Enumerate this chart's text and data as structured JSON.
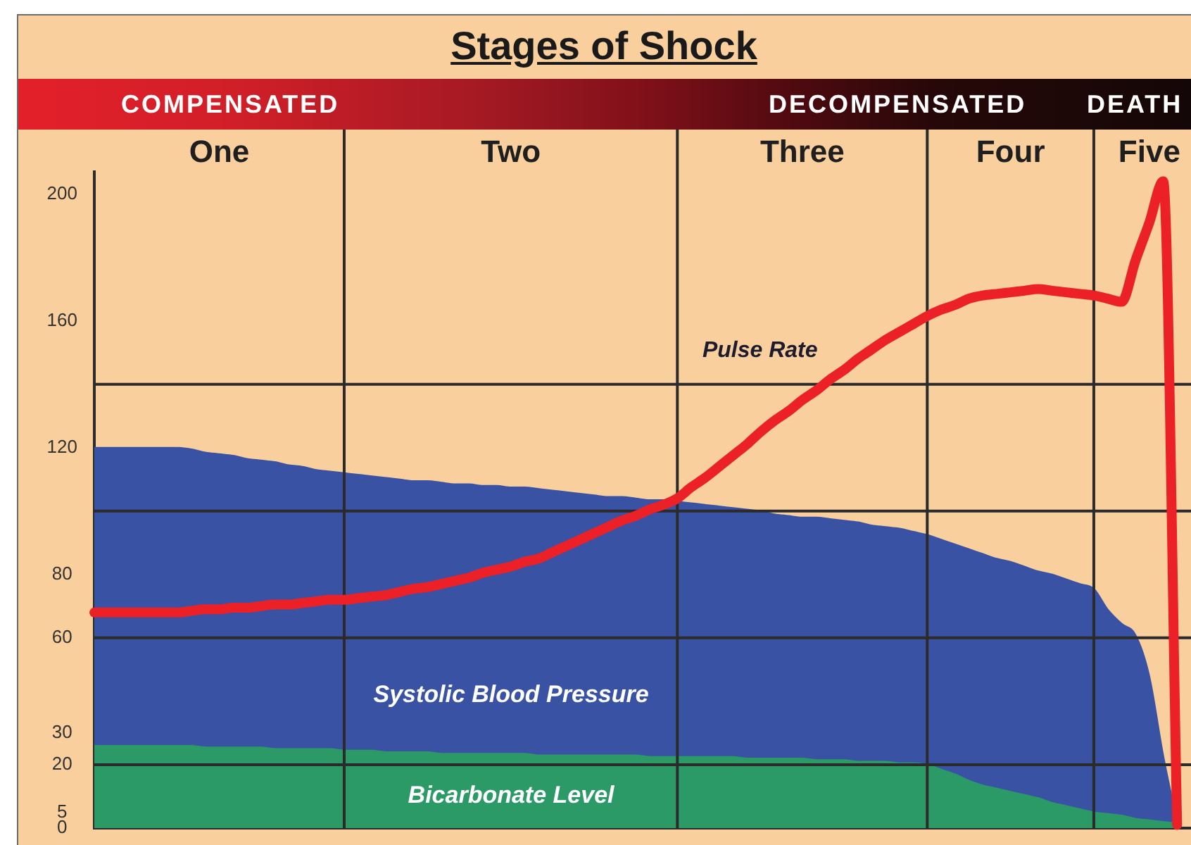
{
  "chart_data": {
    "type": "area",
    "title": "Stages of Shock",
    "annotations": [
      "COMPENSATED",
      "DECOMPENSATED",
      "DEATH"
    ],
    "categories": [
      null,
      null,
      null,
      null,
      null,
      null,
      null,
      null,
      null,
      "One",
      null,
      null,
      null,
      null,
      null,
      null,
      null,
      null,
      null,
      null,
      null,
      null,
      null,
      null,
      null,
      null,
      null,
      null,
      null,
      null,
      "Two",
      null,
      null,
      null,
      null,
      null,
      null,
      null,
      null,
      null,
      null,
      null,
      null,
      null,
      null,
      null,
      null,
      null,
      null,
      null,
      null,
      "Three",
      null,
      null,
      null,
      null,
      null,
      null,
      null,
      null,
      null,
      null,
      null,
      null,
      null,
      null,
      "Four",
      null,
      null,
      null,
      null,
      null,
      null,
      null,
      null,
      null,
      "Five",
      null,
      null,
      null
    ],
    "ylim": [
      0,
      207
    ],
    "yticks": [
      0,
      5,
      20,
      30,
      60,
      80,
      120,
      160,
      200
    ],
    "series": [
      {
        "name": "Systolic Blood Pressure",
        "color": "#3a52a4",
        "values": [
          120,
          120,
          120,
          120,
          120,
          120,
          120,
          119.5,
          118.5,
          118,
          117.5,
          116.5,
          116,
          115.5,
          114.5,
          114,
          113,
          112.5,
          112,
          111.5,
          111,
          110.5,
          110,
          109.5,
          109.5,
          109,
          108.5,
          108.5,
          108,
          108,
          107.5,
          107.5,
          107,
          106.5,
          106,
          105.5,
          105,
          104.5,
          104.5,
          104,
          103.5,
          103.5,
          103,
          102.5,
          102,
          101.5,
          101,
          100.5,
          100,
          99,
          98.5,
          98,
          98,
          97.5,
          97,
          96.5,
          95.5,
          95,
          94.5,
          93.5,
          92.5,
          91,
          89.5,
          88,
          86.5,
          85,
          84,
          82.5,
          81,
          80,
          78.5,
          77,
          75.5,
          69,
          64.5,
          61,
          48,
          23,
          2,
          null
        ]
      },
      {
        "name": "Bicarbonate Level",
        "color": "#2b9a66",
        "values": [
          26,
          26,
          26,
          26,
          26,
          26,
          26,
          26,
          25.5,
          25.5,
          25.5,
          25.5,
          25.5,
          25,
          25,
          25,
          25,
          25,
          24.5,
          24.5,
          24.5,
          24,
          24,
          24,
          24,
          23.5,
          23.5,
          23.5,
          23.5,
          23.5,
          23.5,
          23.5,
          23,
          23,
          23,
          23,
          23,
          23,
          23,
          23,
          22.5,
          22.5,
          22.5,
          22.5,
          22.5,
          22.5,
          22.5,
          22,
          22,
          22,
          22,
          22,
          21.5,
          21.5,
          21.5,
          21,
          21,
          21,
          20.5,
          20.5,
          20,
          18.5,
          17,
          15,
          13.5,
          12.5,
          11.5,
          10.5,
          9.5,
          8,
          7,
          6,
          5,
          4.5,
          4,
          3,
          2.5,
          2,
          1.5,
          null
        ]
      },
      {
        "name": "Pulse Rate",
        "type": "line",
        "color": "#ec2027",
        "values": [
          68,
          68,
          68,
          68,
          68,
          68,
          68,
          68.5,
          69,
          69,
          69.5,
          69.5,
          70,
          70.5,
          70.5,
          71,
          71.5,
          72,
          72,
          72.5,
          73,
          73.5,
          74.5,
          75.5,
          76,
          77,
          78,
          79,
          80.5,
          81.5,
          82.5,
          84,
          85,
          87,
          89,
          91,
          93,
          95,
          97,
          98.5,
          100.5,
          102,
          104,
          107.5,
          110.5,
          114,
          117.5,
          121,
          125,
          128.5,
          131.5,
          135,
          138,
          141.5,
          144.5,
          148,
          151,
          154,
          156.5,
          159,
          161.5,
          163.5,
          165,
          167,
          168,
          168.5,
          169,
          169.5,
          170,
          169.5,
          169,
          168.5,
          168,
          167,
          166,
          179,
          191,
          204,
          1,
          null
        ]
      }
    ],
    "ref_lines": [
      {
        "axis": "y",
        "value": 140,
        "color": "#2b2b2b"
      },
      {
        "axis": "y",
        "value": 100,
        "color": "#2b2b2b"
      },
      {
        "axis": "y",
        "value": 60,
        "color": "#2b2b2b"
      },
      {
        "axis": "y",
        "value": 20,
        "color": "#2b2b2b"
      }
    ]
  }
}
